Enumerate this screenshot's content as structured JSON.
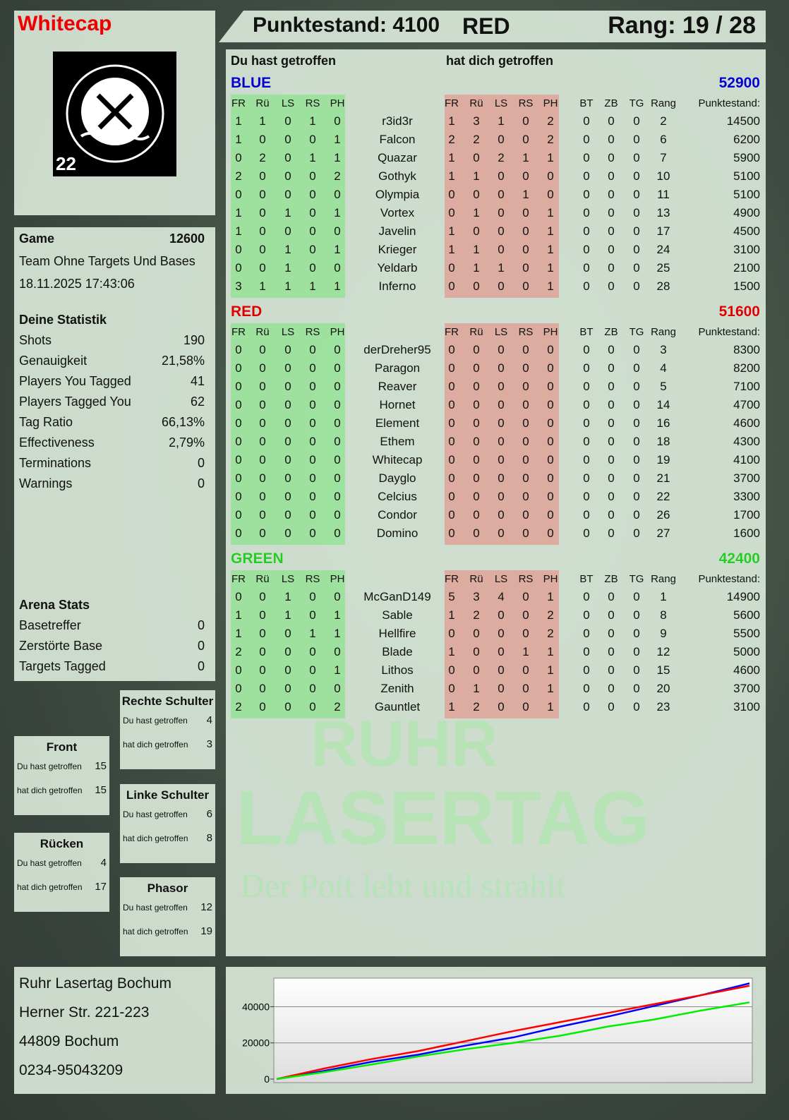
{
  "header": {
    "player": "Whitecap",
    "score_label": "Punktestand: 4100",
    "team": "RED",
    "rank_label": "Rang: 19 / 28"
  },
  "logo": {
    "text_top": "RUHR",
    "text_bottom": "LASERTAG",
    "number": "22"
  },
  "watermark": {
    "line1": "RUHR",
    "line2": "LASERTAG",
    "slogan": "Der Pott lebt und strahlt"
  },
  "game": {
    "label": "Game",
    "score": "12600",
    "mode": "Team Ohne Targets Und Bases",
    "datetime": "18.11.2025 17:43:06"
  },
  "stats": {
    "title": "Deine Statistik",
    "items": [
      {
        "label": "Shots",
        "value": "190"
      },
      {
        "label": "Genauigkeit",
        "value": "21,58%"
      },
      {
        "label": "Players You Tagged",
        "value": "41"
      },
      {
        "label": "Players Tagged You",
        "value": "62"
      },
      {
        "label": "Tag Ratio",
        "value": "66,13%"
      },
      {
        "label": "Effectiveness",
        "value": "2,79%"
      },
      {
        "label": "Terminations",
        "value": "0"
      },
      {
        "label": "Warnings",
        "value": "0"
      }
    ]
  },
  "arena": {
    "title": "Arena Stats",
    "items": [
      {
        "label": "Basetreffer",
        "value": "0"
      },
      {
        "label": "Zerstörte Base",
        "value": "0"
      },
      {
        "label": "Targets Tagged",
        "value": "0"
      }
    ]
  },
  "zones": {
    "you_hit": "Du hast getroffen",
    "hit_you": "hat dich getroffen",
    "items": [
      {
        "name": "Rechte Schulter",
        "you": "4",
        "them": "3"
      },
      {
        "name": "Front",
        "you": "15",
        "them": "15"
      },
      {
        "name": "Linke Schulter",
        "you": "6",
        "them": "8"
      },
      {
        "name": "Rücken",
        "you": "4",
        "them": "17"
      },
      {
        "name": "Phasor",
        "you": "12",
        "them": "19"
      }
    ]
  },
  "main": {
    "you_hit": "Du hast getroffen",
    "hit_you": "hat dich getroffen",
    "hit_cols": [
      "FR",
      "Rü",
      "LS",
      "RS",
      "PH"
    ],
    "extra_cols": [
      "BT",
      "ZB",
      "TG",
      "Rang",
      "Punktestand:"
    ],
    "teams": [
      {
        "name": "BLUE",
        "score": "52900",
        "color": "#0000cc",
        "players": [
          [
            "r3id3r",
            [
              1,
              1,
              0,
              1,
              0
            ],
            [
              1,
              3,
              1,
              0,
              2
            ],
            [
              0,
              0,
              0,
              2,
              14500
            ]
          ],
          [
            "Falcon",
            [
              1,
              0,
              0,
              0,
              1
            ],
            [
              2,
              2,
              0,
              0,
              2
            ],
            [
              0,
              0,
              0,
              6,
              6200
            ]
          ],
          [
            "Quazar",
            [
              0,
              2,
              0,
              1,
              1
            ],
            [
              1,
              0,
              2,
              1,
              1
            ],
            [
              0,
              0,
              0,
              7,
              5900
            ]
          ],
          [
            "Gothyk",
            [
              2,
              0,
              0,
              0,
              2
            ],
            [
              1,
              1,
              0,
              0,
              0
            ],
            [
              0,
              0,
              0,
              10,
              5100
            ]
          ],
          [
            "Olympia",
            [
              0,
              0,
              0,
              0,
              0
            ],
            [
              0,
              0,
              0,
              1,
              0
            ],
            [
              0,
              0,
              0,
              11,
              5100
            ]
          ],
          [
            "Vortex",
            [
              1,
              0,
              1,
              0,
              1
            ],
            [
              0,
              1,
              0,
              0,
              1
            ],
            [
              0,
              0,
              0,
              13,
              4900
            ]
          ],
          [
            "Javelin",
            [
              1,
              0,
              0,
              0,
              0
            ],
            [
              1,
              0,
              0,
              0,
              1
            ],
            [
              0,
              0,
              0,
              17,
              4500
            ]
          ],
          [
            "Krieger",
            [
              0,
              0,
              1,
              0,
              1
            ],
            [
              1,
              1,
              0,
              0,
              1
            ],
            [
              0,
              0,
              0,
              24,
              3100
            ]
          ],
          [
            "Yeldarb",
            [
              0,
              0,
              1,
              0,
              0
            ],
            [
              0,
              1,
              1,
              0,
              1
            ],
            [
              0,
              0,
              0,
              25,
              2100
            ]
          ],
          [
            "Inferno",
            [
              3,
              1,
              1,
              1,
              1
            ],
            [
              0,
              0,
              0,
              0,
              1
            ],
            [
              0,
              0,
              0,
              28,
              1500
            ]
          ]
        ]
      },
      {
        "name": "RED",
        "score": "51600",
        "color": "#dd0000",
        "players": [
          [
            "derDreher95",
            [
              0,
              0,
              0,
              0,
              0
            ],
            [
              0,
              0,
              0,
              0,
              0
            ],
            [
              0,
              0,
              0,
              3,
              8300
            ]
          ],
          [
            "Paragon",
            [
              0,
              0,
              0,
              0,
              0
            ],
            [
              0,
              0,
              0,
              0,
              0
            ],
            [
              0,
              0,
              0,
              4,
              8200
            ]
          ],
          [
            "Reaver",
            [
              0,
              0,
              0,
              0,
              0
            ],
            [
              0,
              0,
              0,
              0,
              0
            ],
            [
              0,
              0,
              0,
              5,
              7100
            ]
          ],
          [
            "Hornet",
            [
              0,
              0,
              0,
              0,
              0
            ],
            [
              0,
              0,
              0,
              0,
              0
            ],
            [
              0,
              0,
              0,
              14,
              4700
            ]
          ],
          [
            "Element",
            [
              0,
              0,
              0,
              0,
              0
            ],
            [
              0,
              0,
              0,
              0,
              0
            ],
            [
              0,
              0,
              0,
              16,
              4600
            ]
          ],
          [
            "Ethem",
            [
              0,
              0,
              0,
              0,
              0
            ],
            [
              0,
              0,
              0,
              0,
              0
            ],
            [
              0,
              0,
              0,
              18,
              4300
            ]
          ],
          [
            "Whitecap",
            [
              0,
              0,
              0,
              0,
              0
            ],
            [
              0,
              0,
              0,
              0,
              0
            ],
            [
              0,
              0,
              0,
              19,
              4100
            ]
          ],
          [
            "Dayglo",
            [
              0,
              0,
              0,
              0,
              0
            ],
            [
              0,
              0,
              0,
              0,
              0
            ],
            [
              0,
              0,
              0,
              21,
              3700
            ]
          ],
          [
            "Celcius",
            [
              0,
              0,
              0,
              0,
              0
            ],
            [
              0,
              0,
              0,
              0,
              0
            ],
            [
              0,
              0,
              0,
              22,
              3300
            ]
          ],
          [
            "Condor",
            [
              0,
              0,
              0,
              0,
              0
            ],
            [
              0,
              0,
              0,
              0,
              0
            ],
            [
              0,
              0,
              0,
              26,
              1700
            ]
          ],
          [
            "Domino",
            [
              0,
              0,
              0,
              0,
              0
            ],
            [
              0,
              0,
              0,
              0,
              0
            ],
            [
              0,
              0,
              0,
              27,
              1600
            ]
          ]
        ]
      },
      {
        "name": "GREEN",
        "score": "42400",
        "color": "#22cc22",
        "players": [
          [
            "McGanD149",
            [
              0,
              0,
              1,
              0,
              0
            ],
            [
              5,
              3,
              4,
              0,
              1
            ],
            [
              0,
              0,
              0,
              1,
              14900
            ]
          ],
          [
            "Sable",
            [
              1,
              0,
              1,
              0,
              1
            ],
            [
              1,
              2,
              0,
              0,
              2
            ],
            [
              0,
              0,
              0,
              8,
              5600
            ]
          ],
          [
            "Hellfire",
            [
              1,
              0,
              0,
              1,
              1
            ],
            [
              0,
              0,
              0,
              0,
              2
            ],
            [
              0,
              0,
              0,
              9,
              5500
            ]
          ],
          [
            "Blade",
            [
              2,
              0,
              0,
              0,
              0
            ],
            [
              1,
              0,
              0,
              1,
              1
            ],
            [
              0,
              0,
              0,
              12,
              5000
            ]
          ],
          [
            "Lithos",
            [
              0,
              0,
              0,
              0,
              1
            ],
            [
              0,
              0,
              0,
              0,
              1
            ],
            [
              0,
              0,
              0,
              15,
              4600
            ]
          ],
          [
            "Zenith",
            [
              0,
              0,
              0,
              0,
              0
            ],
            [
              0,
              1,
              0,
              0,
              1
            ],
            [
              0,
              0,
              0,
              20,
              3700
            ]
          ],
          [
            "Gauntlet",
            [
              2,
              0,
              0,
              0,
              2
            ],
            [
              1,
              2,
              0,
              0,
              1
            ],
            [
              0,
              0,
              0,
              23,
              3100
            ]
          ]
        ]
      }
    ]
  },
  "address": {
    "lines": [
      "Ruhr Lasertag Bochum",
      "Herner Str. 221-223",
      "44809 Bochum",
      "0234-95043209"
    ]
  },
  "chart_data": {
    "type": "line",
    "ylim": [
      0,
      55000
    ],
    "yticks": [
      "0",
      "20000",
      "40000"
    ],
    "grid": true,
    "x": [
      0,
      1,
      2,
      3,
      4,
      5,
      6,
      7,
      8,
      9,
      10
    ],
    "series": [
      {
        "color": "#0000ff",
        "values": [
          0,
          4500,
          9500,
          13500,
          18500,
          23000,
          29000,
          34500,
          40500,
          46500,
          52900
        ]
      },
      {
        "color": "#ff0000",
        "values": [
          0,
          5800,
          11000,
          15500,
          21000,
          26500,
          31500,
          36500,
          41500,
          46500,
          51600
        ]
      },
      {
        "color": "#00ee00",
        "values": [
          0,
          3800,
          8000,
          12500,
          16500,
          20000,
          24000,
          29000,
          33000,
          38000,
          42400
        ]
      }
    ]
  }
}
